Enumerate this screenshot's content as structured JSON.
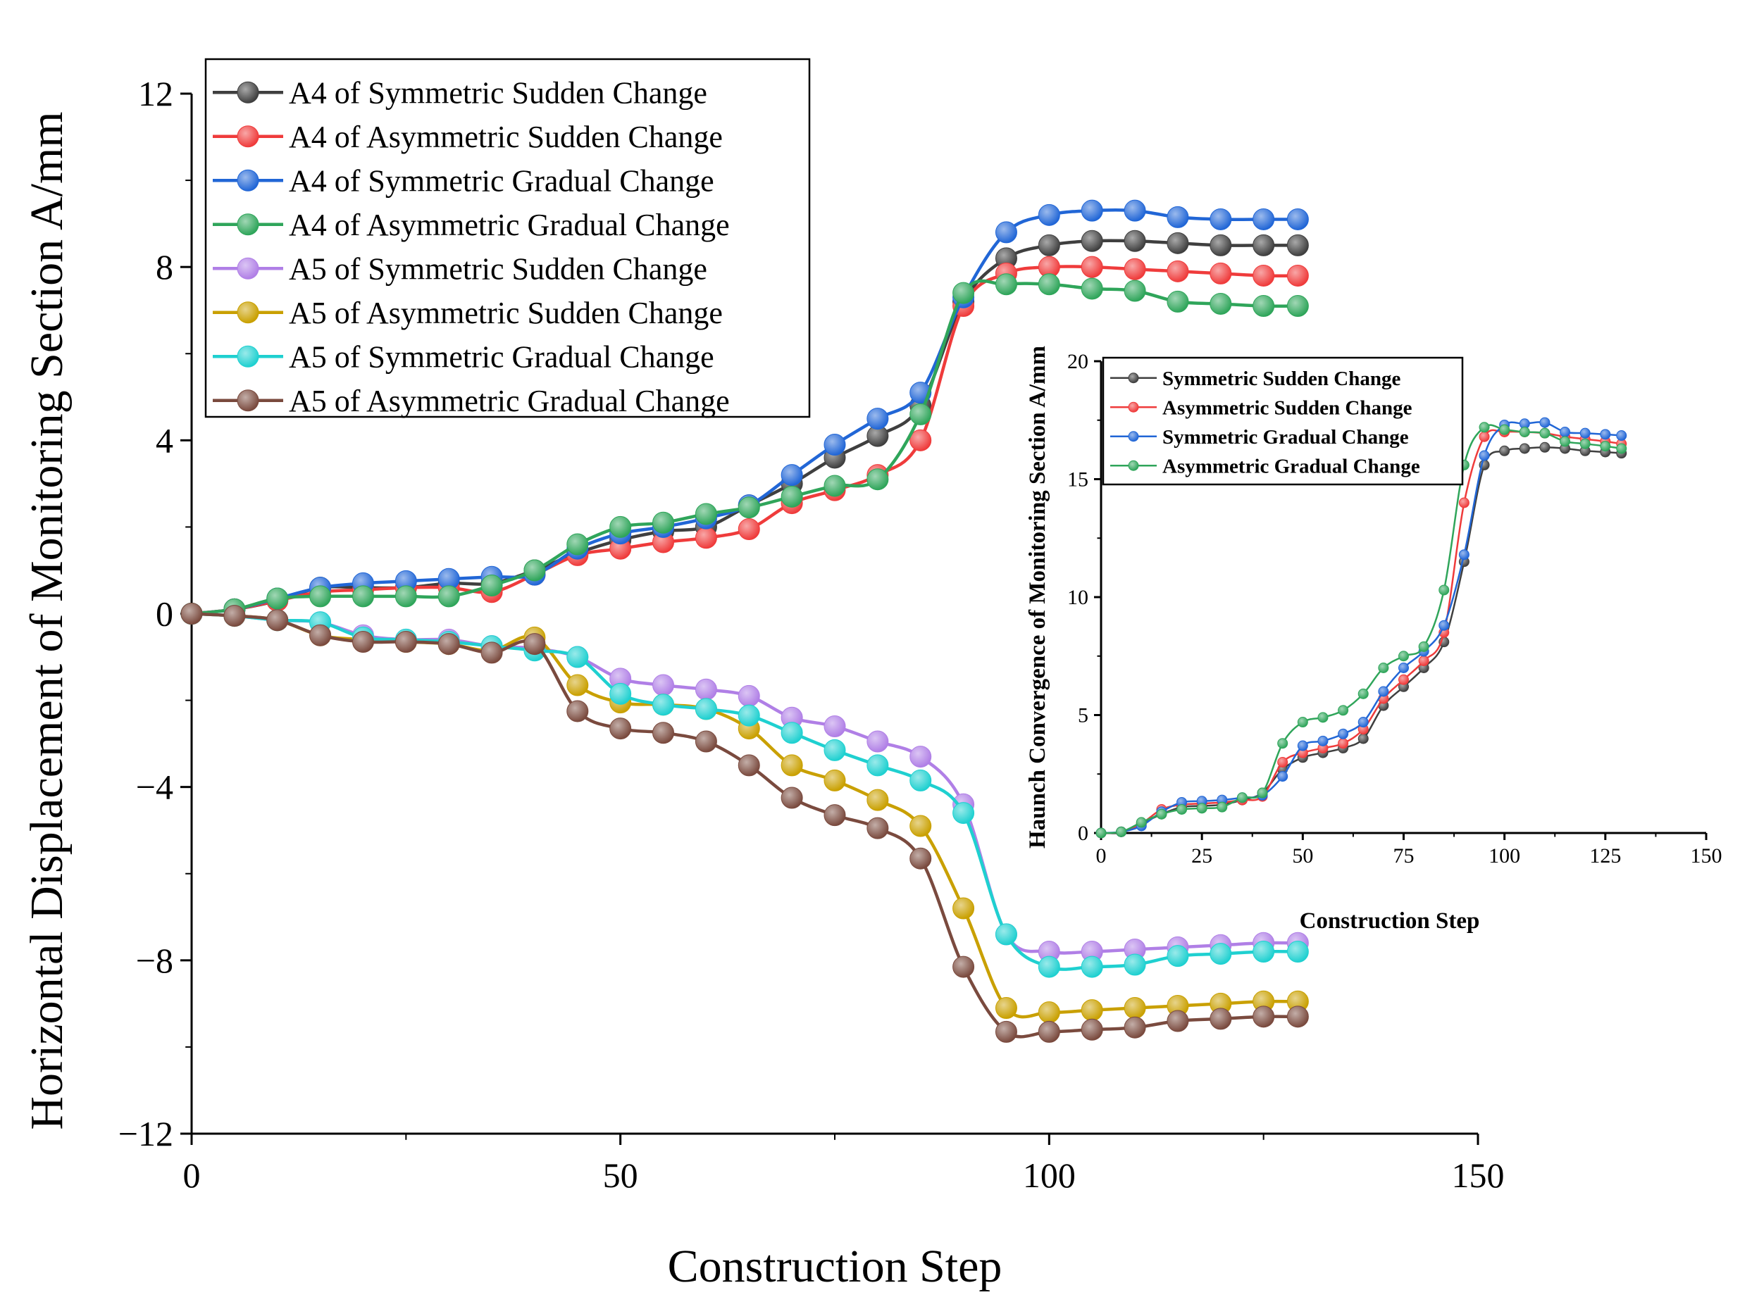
{
  "chart_data": [
    {
      "type": "line",
      "xlabel": "Construction Step",
      "ylabel": "Horizontal Displacement of Monitoring Section A/mm",
      "xlim": [
        0,
        150
      ],
      "ylim": [
        -12,
        12
      ],
      "xticks": [
        0,
        50,
        100,
        150
      ],
      "yticks": [
        -12,
        -8,
        -4,
        0,
        4,
        8,
        12
      ],
      "tick_labels_x": [
        "0",
        "50",
        "100",
        "150"
      ],
      "tick_labels_y": [
        "−12",
        "−8",
        "−4",
        "0",
        "4",
        "8",
        "12"
      ],
      "legend_position": "top-left",
      "x": [
        0,
        5,
        10,
        15,
        20,
        25,
        30,
        35,
        40,
        45,
        50,
        55,
        60,
        65,
        70,
        75,
        80,
        85,
        90,
        95,
        100,
        105,
        110,
        115,
        120,
        125,
        129
      ],
      "series": [
        {
          "name": "A4 of Symmetric Sudden Change",
          "color": "#3f3f3f",
          "values": [
            0,
            0.1,
            0.3,
            0.6,
            0.6,
            0.6,
            0.7,
            0.7,
            1.0,
            1.4,
            1.7,
            1.9,
            2.0,
            2.5,
            3.0,
            3.6,
            4.1,
            4.8,
            7.2,
            8.2,
            8.5,
            8.6,
            8.6,
            8.55,
            8.5,
            8.5,
            8.5
          ]
        },
        {
          "name": "A4 of Asymmetric Sudden Change",
          "color": "#ef3b3b",
          "values": [
            0,
            0.1,
            0.3,
            0.5,
            0.55,
            0.6,
            0.6,
            0.5,
            0.9,
            1.35,
            1.5,
            1.65,
            1.75,
            1.95,
            2.55,
            2.85,
            3.2,
            4.0,
            7.1,
            7.85,
            8.0,
            8.0,
            7.95,
            7.9,
            7.85,
            7.8,
            7.8
          ]
        },
        {
          "name": "A4 of Symmetric Gradual Change",
          "color": "#2166d6",
          "values": [
            0,
            0.1,
            0.35,
            0.6,
            0.7,
            0.75,
            0.8,
            0.85,
            0.9,
            1.5,
            1.85,
            2.0,
            2.2,
            2.5,
            3.2,
            3.9,
            4.5,
            5.1,
            7.3,
            8.8,
            9.2,
            9.3,
            9.3,
            9.15,
            9.1,
            9.1,
            9.1
          ]
        },
        {
          "name": "A4 of Asymmetric Gradual Change",
          "color": "#2fa55a",
          "values": [
            0,
            0.1,
            0.35,
            0.4,
            0.4,
            0.4,
            0.4,
            0.65,
            1.0,
            1.6,
            2.0,
            2.1,
            2.3,
            2.45,
            2.7,
            2.95,
            3.1,
            4.6,
            7.4,
            7.6,
            7.6,
            7.5,
            7.45,
            7.2,
            7.15,
            7.1,
            7.1
          ]
        },
        {
          "name": "A5 of Symmetric Sudden Change",
          "color": "#b07fe6",
          "values": [
            0,
            -0.05,
            -0.15,
            -0.2,
            -0.5,
            -0.6,
            -0.6,
            -0.75,
            -0.8,
            -1.0,
            -1.5,
            -1.65,
            -1.75,
            -1.9,
            -2.4,
            -2.6,
            -2.95,
            -3.3,
            -4.4,
            -7.4,
            -7.8,
            -7.8,
            -7.75,
            -7.7,
            -7.65,
            -7.6,
            -7.6
          ]
        },
        {
          "name": "A5 of Asymmetric Sudden Change",
          "color": "#c9a000",
          "values": [
            0,
            -0.05,
            -0.15,
            -0.5,
            -0.6,
            -0.65,
            -0.7,
            -0.85,
            -0.55,
            -1.65,
            -2.05,
            -2.1,
            -2.2,
            -2.65,
            -3.5,
            -3.85,
            -4.3,
            -4.9,
            -6.8,
            -9.1,
            -9.2,
            -9.15,
            -9.1,
            -9.05,
            -9.0,
            -8.95,
            -8.95
          ]
        },
        {
          "name": "A5 of Symmetric Gradual Change",
          "color": "#1fd0d0",
          "values": [
            0,
            -0.05,
            -0.15,
            -0.2,
            -0.55,
            -0.6,
            -0.65,
            -0.75,
            -0.85,
            -1.0,
            -1.85,
            -2.1,
            -2.2,
            -2.35,
            -2.75,
            -3.15,
            -3.5,
            -3.85,
            -4.6,
            -7.4,
            -8.15,
            -8.15,
            -8.1,
            -7.9,
            -7.85,
            -7.8,
            -7.8
          ]
        },
        {
          "name": "A5 of Asymmetric Gradual Change",
          "color": "#7a4a3e",
          "values": [
            0,
            -0.05,
            -0.15,
            -0.5,
            -0.65,
            -0.65,
            -0.7,
            -0.9,
            -0.7,
            -2.25,
            -2.65,
            -2.75,
            -2.95,
            -3.5,
            -4.25,
            -4.65,
            -4.95,
            -5.65,
            -8.15,
            -9.65,
            -9.65,
            -9.6,
            -9.55,
            -9.4,
            -9.35,
            -9.3,
            -9.3
          ]
        }
      ]
    },
    {
      "type": "line",
      "xlabel": "Construction Step",
      "ylabel": "Haunch Convergence of Monitoring Section A/mm",
      "xlim": [
        0,
        150
      ],
      "ylim": [
        0,
        20
      ],
      "xticks": [
        0,
        25,
        50,
        75,
        100,
        125,
        150
      ],
      "yticks": [
        0,
        5,
        10,
        15,
        20
      ],
      "tick_labels_x": [
        "0",
        "25",
        "50",
        "75",
        "100",
        "125",
        "150"
      ],
      "tick_labels_y": [
        "0",
        "5",
        "10",
        "15",
        "20"
      ],
      "legend_position": "top-left",
      "x": [
        0,
        5,
        10,
        15,
        20,
        25,
        30,
        35,
        40,
        45,
        50,
        55,
        60,
        65,
        70,
        75,
        80,
        85,
        90,
        95,
        100,
        105,
        110,
        115,
        120,
        125,
        129
      ],
      "series": [
        {
          "name": "Symmetric Sudden Change",
          "color": "#3f3f3f",
          "values": [
            0,
            0.05,
            0.4,
            0.8,
            1.1,
            1.15,
            1.2,
            1.4,
            1.7,
            2.7,
            3.2,
            3.4,
            3.6,
            4.0,
            5.4,
            6.2,
            7.0,
            8.1,
            11.5,
            15.6,
            16.2,
            16.3,
            16.35,
            16.3,
            16.2,
            16.15,
            16.1
          ]
        },
        {
          "name": "Asymmetric Sudden Change",
          "color": "#ef3b3b",
          "values": [
            0,
            0.05,
            0.4,
            1.0,
            1.2,
            1.25,
            1.3,
            1.4,
            1.55,
            3.0,
            3.4,
            3.6,
            3.8,
            4.4,
            5.7,
            6.5,
            7.3,
            8.5,
            14.0,
            16.8,
            17.0,
            17.0,
            16.95,
            16.8,
            16.7,
            16.6,
            16.5
          ]
        },
        {
          "name": "Symmetric Gradual Change",
          "color": "#2166d6",
          "values": [
            0,
            0.05,
            0.3,
            0.9,
            1.3,
            1.35,
            1.4,
            1.5,
            1.6,
            2.4,
            3.7,
            3.9,
            4.2,
            4.7,
            6.0,
            7.0,
            7.7,
            8.8,
            11.8,
            16.0,
            17.3,
            17.35,
            17.4,
            17.0,
            16.95,
            16.9,
            16.85
          ]
        },
        {
          "name": "Asymmetric Gradual Change",
          "color": "#2fa55a",
          "values": [
            0,
            0.05,
            0.45,
            0.8,
            1.0,
            1.05,
            1.1,
            1.5,
            1.7,
            3.8,
            4.7,
            4.9,
            5.2,
            5.9,
            7.0,
            7.5,
            7.9,
            10.3,
            15.6,
            17.2,
            17.1,
            17.0,
            16.95,
            16.6,
            16.5,
            16.4,
            16.3
          ]
        }
      ]
    }
  ]
}
